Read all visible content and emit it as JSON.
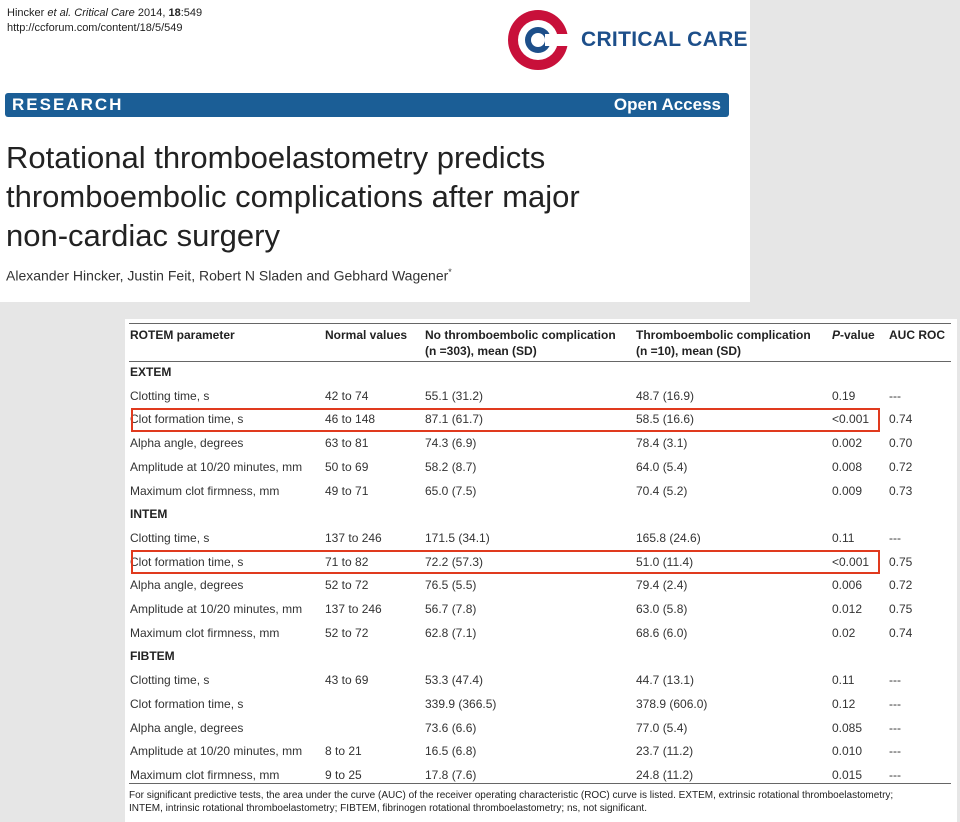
{
  "header": {
    "citation_authors": "Hincker",
    "citation_etal": "et al.",
    "citation_journal": "Critical Care",
    "citation_year": "2014,",
    "citation_volume": "18",
    "citation_page": ":549",
    "url": "http://ccforum.com/content/18/5/549",
    "journal_name": "CRITICAL CARE",
    "section_label": "RESEARCH",
    "access_label": "Open Access",
    "title_line1": "Rotational thromboelastometry predicts",
    "title_line2": "thromboembolic complications after major",
    "title_line3": "non-cardiac surgery",
    "authors": "Alexander Hincker, Justin Feit, Robert N Sladen and Gebhard Wagener",
    "authors_mark": "*"
  },
  "brand_colors": {
    "journal_blue": "#1d4f8a",
    "bar_blue": "#1b5e96",
    "logo_red": "#c8103a",
    "highlight_red": "#e03a1e"
  },
  "table": {
    "headers": {
      "param": "ROTEM parameter",
      "normal": "Normal values",
      "no_comp_l1": "No thromboembolic complication",
      "no_comp_l2": "(n =303), mean (SD)",
      "comp_l1": "Thromboembolic complication",
      "comp_l2": "(n =10), mean (SD)",
      "p_italic": "P",
      "p_rest": "-value",
      "auc": "AUC ROC"
    },
    "sections": [
      {
        "label": "EXTEM",
        "rows": [
          [
            "Clotting time, s",
            "42 to 74",
            "55.1 (31.2)",
            "48.7 (16.9)",
            "0.19",
            "---"
          ],
          [
            "Clot formation time, s",
            "46 to 148",
            "87.1 (61.7)",
            "58.5 (16.6)",
            "<0.001",
            "0.74"
          ],
          [
            "Alpha angle, degrees",
            "63 to 81",
            "74.3 (6.9)",
            "78.4 (3.1)",
            "0.002",
            "0.70"
          ],
          [
            "Amplitude at 10/20 minutes, mm",
            "50 to 69",
            "58.2 (8.7)",
            "64.0 (5.4)",
            "0.008",
            "0.72"
          ],
          [
            "Maximum clot firmness, mm",
            "49 to 71",
            "65.0 (7.5)",
            "70.4 (5.2)",
            "0.009",
            "0.73"
          ]
        ]
      },
      {
        "label": "INTEM",
        "rows": [
          [
            "Clotting time, s",
            "137 to 246",
            "171.5 (34.1)",
            "165.8 (24.6)",
            "0.11",
            "---"
          ],
          [
            "Clot formation time, s",
            "71 to 82",
            "72.2 (57.3)",
            "51.0 (11.4)",
            "<0.001",
            "0.75"
          ],
          [
            "Alpha angle, degrees",
            "52 to 72",
            "76.5 (5.5)",
            "79.4 (2.4)",
            "0.006",
            "0.72"
          ],
          [
            "Amplitude at 10/20 minutes, mm",
            "137 to 246",
            "56.7 (7.8)",
            "63.0 (5.8)",
            "0.012",
            "0.75"
          ],
          [
            "Maximum clot firmness, mm",
            "52 to 72",
            "62.8 (7.1)",
            "68.6 (6.0)",
            "0.02",
            "0.74"
          ]
        ]
      },
      {
        "label": "FIBTEM",
        "rows": [
          [
            "Clotting time, s",
            "43 to 69",
            "53.3 (47.4)",
            "44.7 (13.1)",
            "0.11",
            "---"
          ],
          [
            "Clot formation time, s",
            "",
            "339.9 (366.5)",
            "378.9 (606.0)",
            "0.12",
            "---"
          ],
          [
            "Alpha angle, degrees",
            "",
            "73.6 (6.6)",
            "77.0 (5.4)",
            "0.085",
            "---"
          ],
          [
            "Amplitude at 10/20 minutes, mm",
            "8 to 21",
            "16.5 (6.8)",
            "23.7 (11.2)",
            "0.010",
            "---"
          ],
          [
            "Maximum clot firmness, mm",
            "9 to 25",
            "17.8 (7.6)",
            "24.8 (11.2)",
            "0.015",
            "---"
          ]
        ]
      }
    ],
    "footnote_l1": "For significant predictive tests, the area under the curve (AUC) of the receiver operating characteristic (ROC) curve is listed. EXTEM, extrinsic rotational thromboelastometry;",
    "footnote_l2": "INTEM, intrinsic rotational thromboelastometry; FIBTEM, fibrinogen rotational thromboelastometry; ns, not significant."
  }
}
